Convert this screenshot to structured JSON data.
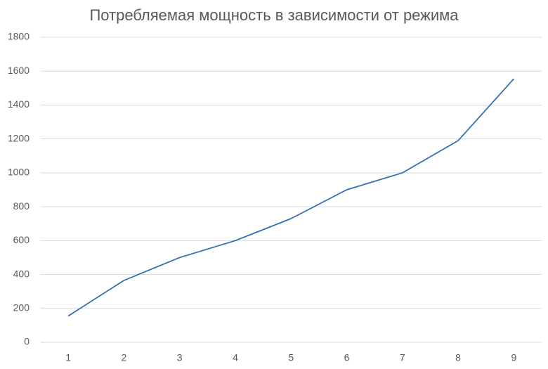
{
  "chart_data": {
    "type": "line",
    "title": "Потребляемая мощность в зависимости от режима",
    "categories": [
      "1",
      "2",
      "3",
      "4",
      "5",
      "6",
      "7",
      "8",
      "9"
    ],
    "values": [
      155,
      365,
      500,
      600,
      730,
      900,
      1000,
      1190,
      1555
    ],
    "color": "#2e6db4",
    "ylim": [
      0,
      1800
    ],
    "yticks": [
      0,
      200,
      400,
      600,
      800,
      1000,
      1200,
      1400,
      1600,
      1800
    ],
    "grid": true
  }
}
